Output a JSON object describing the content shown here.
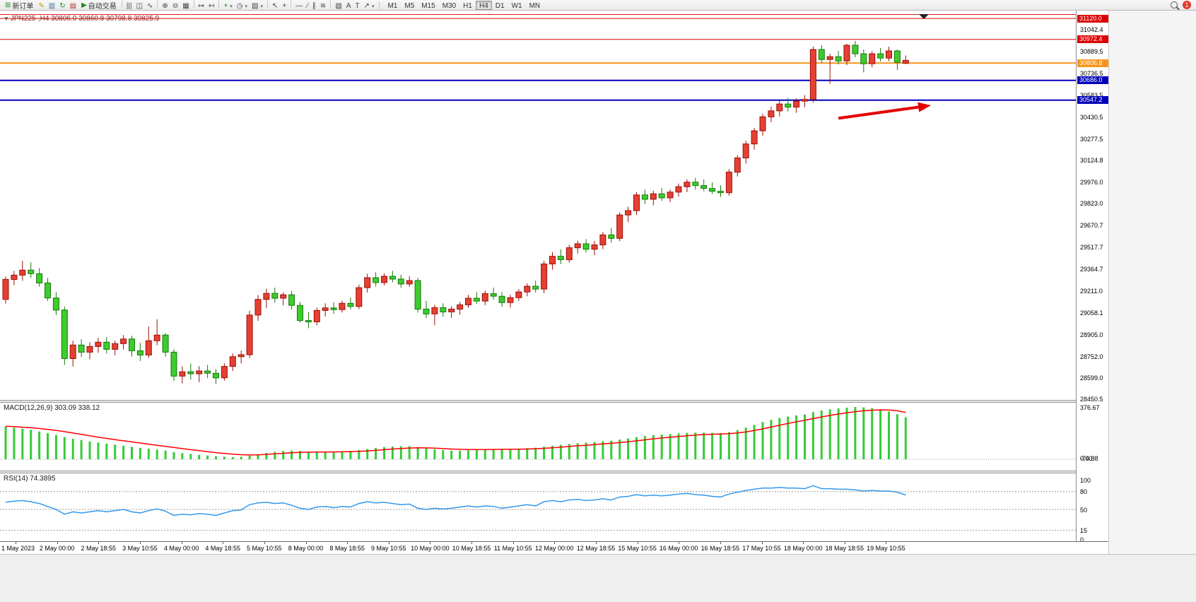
{
  "toolbar": {
    "new_order": {
      "label": "新订单",
      "glyph": "⊞",
      "color": "#2e8b2e"
    },
    "autotrading": {
      "label": "自动交易",
      "glyph": "▶",
      "color": "#1f8a1f"
    },
    "left_icons": [
      {
        "name": "metaeditor-icon",
        "glyph": "✎",
        "color": "#c79a00"
      },
      {
        "name": "market-watch-icon",
        "glyph": "▥",
        "color": "#3a6ea5"
      },
      {
        "name": "refresh-icon",
        "glyph": "↻",
        "color": "#1f8a1f"
      },
      {
        "name": "terminal-icon",
        "glyph": "▤",
        "color": "#b03030"
      }
    ],
    "icon_groups": [
      [
        {
          "name": "bar-chart-icon",
          "glyph": "|||"
        },
        {
          "name": "candles-icon",
          "glyph": "◫"
        },
        {
          "name": "line-chart-icon",
          "glyph": "∿"
        }
      ],
      [
        {
          "name": "zoom-in-icon",
          "glyph": "⊕"
        },
        {
          "name": "zoom-out-icon",
          "glyph": "⊖"
        },
        {
          "name": "tile-windows-icon",
          "glyph": "▦"
        }
      ],
      [
        {
          "name": "auto-scroll-icon",
          "glyph": "↦"
        },
        {
          "name": "chart-shift-icon",
          "glyph": "↤"
        }
      ],
      [
        {
          "name": "indicators-icon",
          "glyph": "+",
          "color": "#1f8a1f",
          "caret": true
        },
        {
          "name": "periods-icon",
          "glyph": "◷",
          "caret": true
        },
        {
          "name": "templates-icon",
          "glyph": "▨",
          "caret": true
        }
      ],
      [
        {
          "name": "cursor-icon",
          "glyph": "↖"
        },
        {
          "name": "crosshair-icon",
          "glyph": "+"
        }
      ],
      [
        {
          "name": "horizontal-line-icon",
          "glyph": "—"
        },
        {
          "name": "trendline-icon",
          "glyph": "∕"
        },
        {
          "name": "channel-icon",
          "glyph": "∥"
        },
        {
          "name": "fibonacci-icon",
          "glyph": "≋"
        }
      ],
      [
        {
          "name": "shapes-icon",
          "glyph": "▧"
        },
        {
          "name": "text-icon",
          "glyph": "A"
        },
        {
          "name": "text-label-icon",
          "glyph": "T"
        },
        {
          "name": "arrow-objects-icon",
          "glyph": "↗",
          "caret": true
        }
      ]
    ],
    "timeframes": [
      "M1",
      "M5",
      "M15",
      "M30",
      "H1",
      "H4",
      "D1",
      "W1",
      "MN"
    ],
    "active_timeframe": "H4",
    "notification_count": "1"
  },
  "chart": {
    "symbol_period": "JPN225-,H4",
    "ohlc": "30806.0 30860.8 30798.8 30825.9"
  },
  "price_axis": {
    "ticks": [
      "31042.4",
      "30889.5",
      "30736.5",
      "30583.5",
      "30430.5",
      "30277.5",
      "30124.8",
      "29976.0",
      "29823.0",
      "29670.7",
      "29517.7",
      "29364.7",
      "29211.0",
      "29058.1",
      "28905.0",
      "28752.0",
      "28599.0",
      "28450.5"
    ]
  },
  "chart_data": {
    "type": "candlestick",
    "symbol": "JPN225-",
    "timeframe": "H4",
    "price_range": [
      28445,
      31150
    ],
    "colors": {
      "up": "#e54033",
      "up_border": "#9c0f06",
      "down": "#3ecb2e",
      "down_border": "#147a0a",
      "macd_hist": "#35cc35",
      "macd_signal": "#ff0000",
      "rsi_line": "#3399ee",
      "level_line": "#999999"
    },
    "x_labels": [
      "1 May 2023",
      "2 May 00:00",
      "2 May 18:55",
      "3 May 10:55",
      "4 May 00:00",
      "4 May 18:55",
      "5 May 10:55",
      "8 May 00:00",
      "8 May 18:55",
      "9 May 10:55",
      "10 May 00:00",
      "10 May 18:55",
      "11 May 10:55",
      "12 May 00:00",
      "12 May 18:55",
      "15 May 10:55",
      "16 May 00:00",
      "16 May 18:55",
      "17 May 10:55",
      "18 May 00:00",
      "18 May 18:55",
      "19 May 10:55"
    ],
    "hlines": [
      {
        "price": 31148.0,
        "color": "#dd0000",
        "width": 1,
        "label": null
      },
      {
        "price": 31120.0,
        "color": "#dd0000",
        "width": 1,
        "label": "31120.0"
      },
      {
        "price": 30972.4,
        "color": "#dd0000",
        "width": 1,
        "label": "30972.4"
      },
      {
        "price": 30806.8,
        "color": "#f7941d",
        "width": 2,
        "label": "30806.8"
      },
      {
        "price": 30686.0,
        "color": "#0000bb",
        "width": 2,
        "label": "30686.0"
      },
      {
        "price": 30547.2,
        "color": "#0000bb",
        "width": 2,
        "label": "30547.2"
      }
    ],
    "arrow": {
      "from_bar": 99,
      "from_price": 30420,
      "to_bar": 110,
      "to_price": 30510,
      "color": "#e50000"
    },
    "candles": [
      [
        29150,
        29310,
        29120,
        29290
      ],
      [
        29290,
        29350,
        29250,
        29320
      ],
      [
        29320,
        29420,
        29280,
        29355
      ],
      [
        29355,
        29410,
        29300,
        29330
      ],
      [
        29330,
        29370,
        29240,
        29265
      ],
      [
        29265,
        29300,
        29140,
        29160
      ],
      [
        29160,
        29200,
        29040,
        29075
      ],
      [
        29075,
        29100,
        28690,
        28735
      ],
      [
        28735,
        28860,
        28680,
        28830
      ],
      [
        28830,
        28870,
        28745,
        28780
      ],
      [
        28780,
        28850,
        28730,
        28820
      ],
      [
        28820,
        28880,
        28775,
        28850
      ],
      [
        28850,
        28885,
        28770,
        28800
      ],
      [
        28800,
        28860,
        28758,
        28840
      ],
      [
        28840,
        28900,
        28798,
        28872
      ],
      [
        28872,
        28895,
        28748,
        28790
      ],
      [
        28790,
        28845,
        28718,
        28760
      ],
      [
        28760,
        28960,
        28740,
        28860
      ],
      [
        28860,
        29010,
        28828,
        28900
      ],
      [
        28900,
        28912,
        28748,
        28780
      ],
      [
        28780,
        28800,
        28578,
        28612
      ],
      [
        28612,
        28680,
        28560,
        28642
      ],
      [
        28642,
        28700,
        28588,
        28628
      ],
      [
        28628,
        28682,
        28570,
        28648
      ],
      [
        28648,
        28690,
        28598,
        28632
      ],
      [
        28632,
        28662,
        28558,
        28600
      ],
      [
        28600,
        28702,
        28580,
        28680
      ],
      [
        28680,
        28770,
        28648,
        28748
      ],
      [
        28748,
        28792,
        28700,
        28762
      ],
      [
        28762,
        29070,
        28740,
        29040
      ],
      [
        29040,
        29180,
        29000,
        29150
      ],
      [
        29150,
        29225,
        29088,
        29192
      ],
      [
        29192,
        29232,
        29128,
        29158
      ],
      [
        29158,
        29200,
        29108,
        29182
      ],
      [
        29182,
        29210,
        29078,
        29108
      ],
      [
        29108,
        29132,
        28988,
        29002
      ],
      [
        29002,
        29062,
        28948,
        28992
      ],
      [
        28992,
        29092,
        28968,
        29072
      ],
      [
        29072,
        29122,
        29030,
        29090
      ],
      [
        29090,
        29130,
        29048,
        29078
      ],
      [
        29078,
        29140,
        29058,
        29122
      ],
      [
        29122,
        29162,
        29080,
        29100
      ],
      [
        29100,
        29252,
        29082,
        29232
      ],
      [
        29232,
        29330,
        29198,
        29302
      ],
      [
        29302,
        29340,
        29240,
        29268
      ],
      [
        29268,
        29332,
        29248,
        29312
      ],
      [
        29312,
        29350,
        29270,
        29292
      ],
      [
        29292,
        29322,
        29232,
        29258
      ],
      [
        29258,
        29312,
        29238,
        29282
      ],
      [
        29282,
        29300,
        29058,
        29082
      ],
      [
        29082,
        29140,
        29018,
        29048
      ],
      [
        29048,
        29112,
        28968,
        29092
      ],
      [
        29092,
        29122,
        29028,
        29062
      ],
      [
        29062,
        29102,
        29020,
        29082
      ],
      [
        29082,
        29132,
        29042,
        29112
      ],
      [
        29112,
        29182,
        29090,
        29158
      ],
      [
        29158,
        29200,
        29118,
        29138
      ],
      [
        29138,
        29212,
        29110,
        29190
      ],
      [
        29190,
        29232,
        29148,
        29172
      ],
      [
        29172,
        29200,
        29098,
        29128
      ],
      [
        29128,
        29182,
        29092,
        29162
      ],
      [
        29162,
        29222,
        29140,
        29202
      ],
      [
        29202,
        29262,
        29172,
        29242
      ],
      [
        29242,
        29282,
        29198,
        29222
      ],
      [
        29222,
        29420,
        29192,
        29398
      ],
      [
        29398,
        29482,
        29358,
        29452
      ],
      [
        29452,
        29500,
        29398,
        29428
      ],
      [
        29428,
        29532,
        29408,
        29512
      ],
      [
        29512,
        29562,
        29472,
        29540
      ],
      [
        29540,
        29572,
        29478,
        29502
      ],
      [
        29502,
        29560,
        29460,
        29532
      ],
      [
        29532,
        29622,
        29502,
        29602
      ],
      [
        29602,
        29650,
        29548,
        29578
      ],
      [
        29578,
        29760,
        29558,
        29742
      ],
      [
        29742,
        29800,
        29692,
        29772
      ],
      [
        29772,
        29902,
        29742,
        29882
      ],
      [
        29882,
        29920,
        29818,
        29852
      ],
      [
        29852,
        29912,
        29810,
        29890
      ],
      [
        29890,
        29932,
        29840,
        29862
      ],
      [
        29862,
        29920,
        29832,
        29902
      ],
      [
        29902,
        29962,
        29870,
        29940
      ],
      [
        29940,
        29992,
        29902,
        29972
      ],
      [
        29972,
        30002,
        29920,
        29948
      ],
      [
        29948,
        29990,
        29908,
        29928
      ],
      [
        29928,
        29970,
        29888,
        29908
      ],
      [
        29908,
        29950,
        29868,
        29898
      ],
      [
        29898,
        30062,
        29878,
        30042
      ],
      [
        30042,
        30162,
        30012,
        30142
      ],
      [
        30142,
        30262,
        30102,
        30240
      ],
      [
        30240,
        30352,
        30200,
        30332
      ],
      [
        30332,
        30452,
        30298,
        30430
      ],
      [
        30430,
        30502,
        30392,
        30472
      ],
      [
        30472,
        30542,
        30432,
        30520
      ],
      [
        30520,
        30562,
        30468,
        30498
      ],
      [
        30498,
        30560,
        30458,
        30540
      ],
      [
        30540,
        30582,
        30498,
        30552
      ],
      [
        30552,
        30922,
        30530,
        30902
      ],
      [
        30902,
        30932,
        30808,
        30832
      ],
      [
        30832,
        30872,
        30662,
        30852
      ],
      [
        30852,
        30892,
        30798,
        30822
      ],
      [
        30822,
        30942,
        30792,
        30932
      ],
      [
        30932,
        30962,
        30848,
        30872
      ],
      [
        30872,
        30902,
        30742,
        30802
      ],
      [
        30802,
        30892,
        30778,
        30872
      ],
      [
        30872,
        30912,
        30818,
        30842
      ],
      [
        30842,
        30922,
        30820,
        30892
      ],
      [
        30892,
        30902,
        30758,
        30812
      ],
      [
        30806.0,
        30860.8,
        30798.8,
        30825.9
      ]
    ],
    "macd": {
      "label": "MACD(12,26,9)",
      "values_text": "303.09 338.12",
      "axis": [
        "376.67",
        "0.00",
        "-74.88"
      ],
      "range": [
        -81.4,
        407.2
      ],
      "histogram": [
        235,
        228,
        220,
        212,
        200,
        188,
        175,
        160,
        148,
        138,
        128,
        120,
        112,
        105,
        98,
        90,
        82,
        76,
        70,
        62,
        52,
        44,
        38,
        32,
        27,
        22,
        18,
        16,
        18,
        26,
        36,
        46,
        54,
        60,
        62,
        60,
        56,
        54,
        54,
        55,
        57,
        60,
        66,
        74,
        82,
        88,
        92,
        94,
        94,
        88,
        80,
        72,
        66,
        62,
        62,
        64,
        67,
        70,
        73,
        74,
        75,
        77,
        80,
        83,
        90,
        98,
        104,
        110,
        116,
        120,
        124,
        130,
        134,
        142,
        150,
        160,
        168,
        174,
        178,
        182,
        186,
        190,
        192,
        192,
        190,
        188,
        196,
        210,
        228,
        248,
        268,
        284,
        298,
        308,
        316,
        322,
        340,
        352,
        360,
        366,
        372,
        376.67,
        374,
        368,
        358,
        344,
        324,
        303.09
      ],
      "signal": [
        238,
        235,
        231,
        227,
        222,
        215,
        208,
        199,
        189,
        179,
        169,
        159,
        150,
        141,
        133,
        125,
        117,
        109,
        101,
        93,
        85,
        77,
        69,
        62,
        55,
        48,
        42,
        37,
        33,
        31,
        32,
        35,
        39,
        43,
        47,
        50,
        51,
        52,
        52,
        53,
        54,
        55,
        57,
        60,
        64,
        69,
        74,
        78,
        81,
        83,
        82,
        80,
        77,
        74,
        72,
        70,
        70,
        70,
        71,
        72,
        72,
        73,
        74,
        76,
        79,
        83,
        87,
        92,
        97,
        101,
        106,
        111,
        115,
        120,
        126,
        133,
        140,
        147,
        153,
        159,
        164,
        169,
        174,
        178,
        180,
        182,
        185,
        190,
        197,
        207,
        219,
        232,
        245,
        258,
        270,
        281,
        293,
        305,
        316,
        326,
        335,
        343,
        349,
        354,
        356,
        355,
        349,
        338.12
      ]
    },
    "rsi": {
      "label": "RSI(14)",
      "value_text": "74.3895",
      "axis": [
        "100",
        "80",
        "50",
        "15",
        "0"
      ],
      "levels": [
        80,
        50,
        15
      ],
      "range": [
        0,
        100
      ],
      "values": [
        62,
        64,
        65,
        63,
        60,
        55,
        50,
        42,
        46,
        44,
        46,
        48,
        46,
        48,
        50,
        46,
        44,
        48,
        51,
        47,
        40,
        42,
        41,
        43,
        42,
        40,
        44,
        48,
        49,
        58,
        61,
        62,
        60,
        61,
        57,
        52,
        50,
        54,
        55,
        53,
        55,
        54,
        60,
        63,
        61,
        62,
        60,
        58,
        59,
        52,
        50,
        52,
        51,
        52,
        54,
        56,
        54,
        56,
        55,
        52,
        54,
        56,
        58,
        56,
        63,
        65,
        63,
        66,
        67,
        65,
        66,
        68,
        66,
        71,
        72,
        75,
        73,
        74,
        73,
        74,
        76,
        77,
        75,
        74,
        72,
        71,
        76,
        79,
        82,
        84,
        86,
        86,
        87,
        86,
        86,
        85,
        90,
        85,
        85,
        84,
        84,
        83,
        81,
        82,
        81,
        81,
        79,
        74.39
      ]
    }
  }
}
